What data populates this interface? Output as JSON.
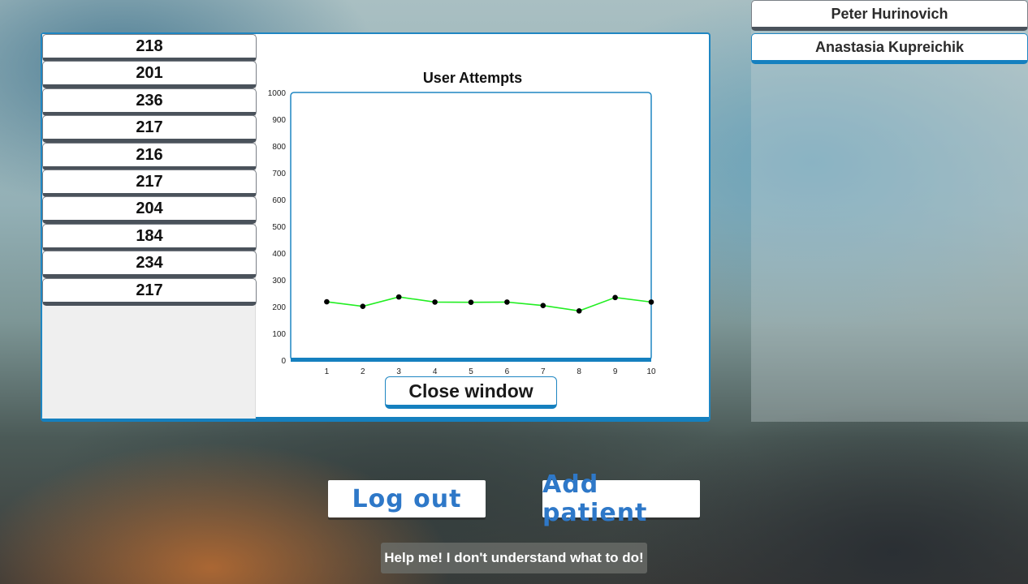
{
  "attempts_list": [
    "218",
    "201",
    "236",
    "217",
    "216",
    "217",
    "204",
    "184",
    "234",
    "217"
  ],
  "chart": {
    "title": "User Attempts",
    "close_label": "Close window"
  },
  "chart_data": {
    "type": "line",
    "title": "User Attempts",
    "xlabel": "",
    "ylabel": "",
    "x": [
      1,
      2,
      3,
      4,
      5,
      6,
      7,
      8,
      9,
      10
    ],
    "series": [
      {
        "values": [
          218,
          201,
          236,
          217,
          216,
          217,
          204,
          184,
          234,
          217
        ]
      }
    ],
    "xlim": [
      0,
      10
    ],
    "ylim": [
      0,
      1000
    ],
    "y_ticks": [
      0,
      100,
      200,
      300,
      400,
      500,
      600,
      700,
      800,
      900,
      1000
    ],
    "x_ticks": [
      1,
      2,
      3,
      4,
      5,
      6,
      7,
      8,
      9,
      10
    ],
    "grid": false,
    "line_color": "#22ee22",
    "marker_color": "#000000"
  },
  "patients": [
    {
      "name": "Peter Hurinovich",
      "selected": false
    },
    {
      "name": "Anastasia Kupreichik",
      "selected": true
    }
  ],
  "buttons": {
    "logout_label": "Log out",
    "add_patient_label": "Add patient",
    "help_label": "Help me! I don't understand what to do!"
  },
  "colors": {
    "accent": "#1f86c2",
    "button_text": "#2e78c8"
  }
}
